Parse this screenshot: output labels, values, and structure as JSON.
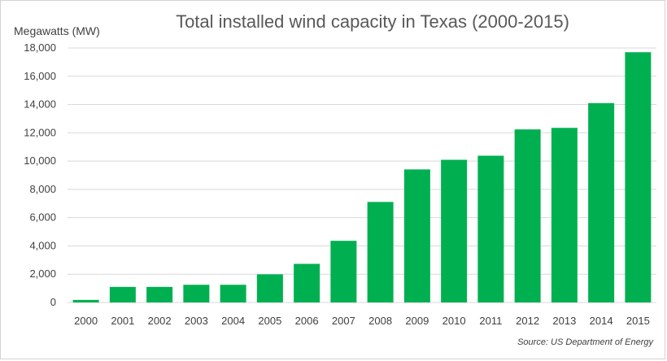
{
  "chart_data": {
    "type": "bar",
    "title": "Total installed wind capacity in Texas (2000-2015)",
    "ylabel": "Megawatts (MW)",
    "xlabel": "",
    "categories": [
      "2000",
      "2001",
      "2002",
      "2003",
      "2004",
      "2005",
      "2006",
      "2007",
      "2008",
      "2009",
      "2010",
      "2011",
      "2012",
      "2013",
      "2014",
      "2015"
    ],
    "values": [
      180,
      1100,
      1100,
      1250,
      1250,
      1990,
      2730,
      4360,
      7110,
      9410,
      10090,
      10380,
      12240,
      12350,
      14100,
      17700
    ],
    "ylim": [
      0,
      18000
    ],
    "y_ticks": [
      "0",
      "2,000",
      "4,000",
      "6,000",
      "8,000",
      "10,000",
      "12,000",
      "14,000",
      "16,000",
      "18,000"
    ],
    "grid": true,
    "bar_color": "#00b050",
    "source": "Source: US Department of Energy"
  }
}
